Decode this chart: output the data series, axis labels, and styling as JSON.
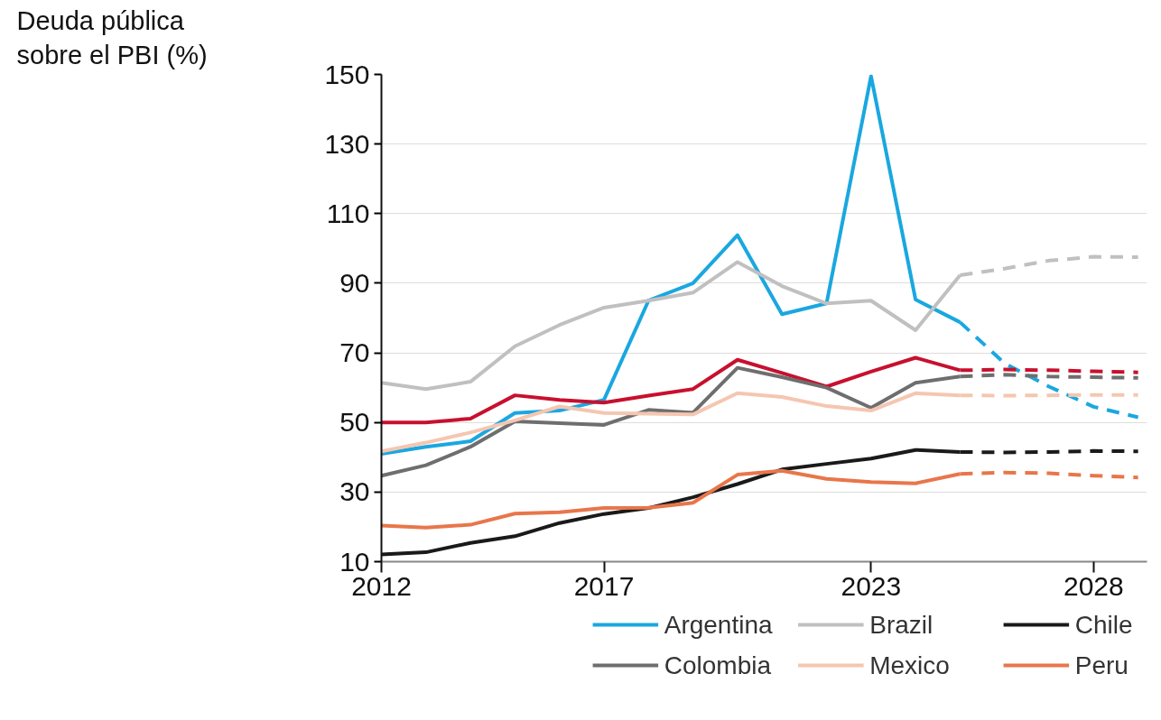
{
  "chart_data": {
    "type": "line",
    "title": "Deuda pública\nsobre el PBI (%)",
    "ylim": [
      10,
      150
    ],
    "yticks": [
      10,
      30,
      50,
      70,
      90,
      110,
      130,
      150
    ],
    "xlim": [
      2012,
      2029.2
    ],
    "xticks": [
      2012,
      2017,
      2023,
      2028
    ],
    "grid": "y",
    "legend": "bottom",
    "series": [
      {
        "name": "Argentina",
        "color": "#1aa7e0",
        "line_style": "solid",
        "x": [
          2012,
          2013,
          2014,
          2015,
          2016,
          2017,
          2018,
          2019,
          2020,
          2021,
          2022,
          2023,
          2024,
          2025
        ],
        "values": [
          41,
          43,
          44.6,
          52.7,
          53.4,
          56.5,
          85,
          90,
          103.8,
          81.1,
          84.2,
          149.5,
          85.3,
          78.8
        ]
      },
      {
        "color": "#1aa7e0",
        "line_style": "dashed",
        "x": [
          2025,
          2026,
          2027,
          2028,
          2029
        ],
        "values": [
          78.8,
          67,
          60.3,
          54.5,
          51.5
        ]
      },
      {
        "name": "Brazil",
        "color": "#c0c0c0",
        "line_style": "solid",
        "x": [
          2012,
          2013,
          2014,
          2015,
          2016,
          2017,
          2018,
          2019,
          2020,
          2021,
          2022,
          2023,
          2024,
          2025
        ],
        "values": [
          61.4,
          59.6,
          61.7,
          71.9,
          78,
          83,
          85,
          87.3,
          96.1,
          89.2,
          84.2,
          85,
          76.5,
          92.3
        ]
      },
      {
        "color": "#c0c0c0",
        "line_style": "dashed",
        "x": [
          2025,
          2026,
          2027,
          2028,
          2029
        ],
        "values": [
          92.3,
          94.2,
          96.5,
          97.6,
          97.5
        ]
      },
      {
        "color": "#c8102e",
        "line_style": "solid",
        "x": [
          2012,
          2013,
          2014,
          2015,
          2016,
          2017,
          2018,
          2019,
          2020,
          2021,
          2022,
          2023,
          2024,
          2025
        ],
        "values": [
          50,
          50,
          51.1,
          57.8,
          56.5,
          55.7,
          57.7,
          59.6,
          68,
          64.2,
          60.3,
          64.6,
          68.6,
          65
        ]
      },
      {
        "color": "#c8102e",
        "line_style": "dashed",
        "x": [
          2025,
          2026,
          2027,
          2028,
          2029
        ],
        "values": [
          65,
          65.2,
          65,
          64.7,
          64.4
        ]
      },
      {
        "name": "Chile",
        "color": "#1a1a1a",
        "line_style": "solid",
        "x": [
          2012,
          2013,
          2014,
          2015,
          2016,
          2017,
          2018,
          2019,
          2020,
          2021,
          2022,
          2023,
          2024,
          2025
        ],
        "values": [
          12.1,
          12.7,
          15.4,
          17.3,
          21.1,
          23.7,
          25.4,
          28.5,
          32.3,
          36.5,
          38.1,
          39.6,
          42.1,
          41.5
        ]
      },
      {
        "color": "#1a1a1a",
        "line_style": "dashed",
        "x": [
          2025,
          2026,
          2027,
          2028,
          2029
        ],
        "values": [
          41.5,
          41.4,
          41.5,
          41.8,
          41.7
        ]
      },
      {
        "name": "Colombia",
        "color": "#6e6e6e",
        "line_style": "solid",
        "x": [
          2012,
          2013,
          2014,
          2015,
          2016,
          2017,
          2018,
          2019,
          2020,
          2021,
          2022,
          2023,
          2024,
          2025
        ],
        "values": [
          34.7,
          37.7,
          43,
          50.3,
          49.8,
          49.3,
          53.6,
          52.8,
          65.7,
          63,
          60,
          54.2,
          61.4,
          63.2
        ]
      },
      {
        "color": "#6e6e6e",
        "line_style": "dashed",
        "x": [
          2025,
          2026,
          2027,
          2028,
          2029
        ],
        "values": [
          63.2,
          63.7,
          63.2,
          63,
          62.8
        ]
      },
      {
        "name": "Mexico",
        "color": "#f5c6b0",
        "line_style": "solid",
        "x": [
          2012,
          2013,
          2014,
          2015,
          2016,
          2017,
          2018,
          2019,
          2020,
          2021,
          2022,
          2023,
          2024,
          2025
        ],
        "values": [
          41.7,
          44.2,
          47.1,
          50.6,
          54.6,
          52.7,
          52.5,
          52.3,
          58.4,
          57.3,
          54.7,
          53.4,
          58.4,
          57.8
        ]
      },
      {
        "color": "#f5c6b0",
        "line_style": "dashed",
        "x": [
          2025,
          2026,
          2027,
          2028,
          2029
        ],
        "values": [
          57.8,
          57.7,
          57.8,
          57.9,
          57.9
        ]
      },
      {
        "name": "Peru",
        "color": "#e8764a",
        "line_style": "solid",
        "x": [
          2012,
          2013,
          2014,
          2015,
          2016,
          2017,
          2018,
          2019,
          2020,
          2021,
          2022,
          2023,
          2024,
          2025
        ],
        "values": [
          20.4,
          19.8,
          20.6,
          23.8,
          24.2,
          25.4,
          25.5,
          26.9,
          35,
          36.1,
          33.8,
          32.9,
          32.5,
          35.2
        ]
      },
      {
        "color": "#e8764a",
        "line_style": "dashed",
        "x": [
          2025,
          2026,
          2027,
          2028,
          2029
        ],
        "values": [
          35.2,
          35.6,
          35.4,
          34.7,
          34.2
        ]
      }
    ]
  }
}
